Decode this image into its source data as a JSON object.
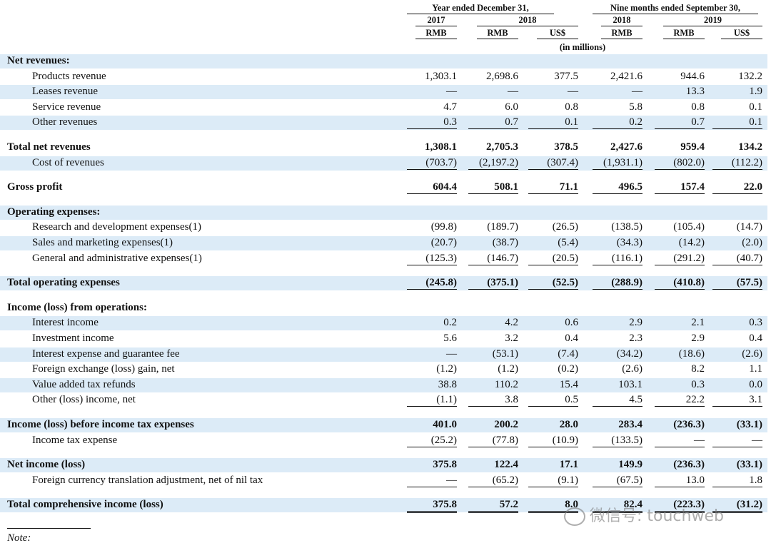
{
  "header": {
    "group1": "Year ended December 31,",
    "group2": "Nine months ended September 30,",
    "years": [
      "2017",
      "2018",
      "2018",
      "2019"
    ],
    "currencies": [
      "RMB",
      "RMB",
      "US$",
      "RMB",
      "RMB",
      "US$"
    ],
    "units": "(in millions)"
  },
  "table": {
    "rows": [
      {
        "label": "Net revenues:",
        "bold": true,
        "shaded": true,
        "cells": []
      },
      {
        "label": "Products revenue",
        "cells": [
          "1,303.1",
          "2,698.6",
          "377.5",
          "2,421.6",
          "944.6",
          "132.2"
        ]
      },
      {
        "label": "Leases revenue",
        "shaded": true,
        "cells": [
          "—",
          "—",
          "—",
          "—",
          "13.3",
          "1.9"
        ]
      },
      {
        "label": "Service revenue",
        "cells": [
          "4.7",
          "6.0",
          "0.8",
          "5.8",
          "0.8",
          "0.1"
        ]
      },
      {
        "label": "Other revenues",
        "shaded": true,
        "underline": "single",
        "cells": [
          "0.3",
          "0.7",
          "0.1",
          "0.2",
          "0.7",
          "0.1"
        ]
      },
      {
        "label": "Total net revenues",
        "bold": true,
        "gap": true,
        "cells": [
          "1,308.1",
          "2,705.3",
          "378.5",
          "2,427.6",
          "959.4",
          "134.2"
        ]
      },
      {
        "label": "Cost of revenues",
        "shaded": true,
        "underline": "single",
        "cells": [
          "(703.7)",
          "(2,197.2)",
          "(307.4)",
          "(1,931.1)",
          "(802.0)",
          "(112.2)"
        ]
      },
      {
        "label": "Gross profit",
        "bold": true,
        "gap": true,
        "underline": "single",
        "cells": [
          "604.4",
          "508.1",
          "71.1",
          "496.5",
          "157.4",
          "22.0"
        ]
      },
      {
        "label": "Operating expenses:",
        "bold": true,
        "shaded": true,
        "gap": true,
        "cells": []
      },
      {
        "label": "Research and development expenses(1)",
        "cells": [
          "(99.8)",
          "(189.7)",
          "(26.5)",
          "(138.5)",
          "(105.4)",
          "(14.7)"
        ]
      },
      {
        "label": "Sales and marketing expenses(1)",
        "shaded": true,
        "cells": [
          "(20.7)",
          "(38.7)",
          "(5.4)",
          "(34.3)",
          "(14.2)",
          "(2.0)"
        ]
      },
      {
        "label": "General and administrative expenses(1)",
        "underline": "single",
        "cells": [
          "(125.3)",
          "(146.7)",
          "(20.5)",
          "(116.1)",
          "(291.2)",
          "(40.7)"
        ]
      },
      {
        "label": "Total operating expenses",
        "bold": true,
        "shaded": true,
        "gap": true,
        "underline": "single",
        "cells": [
          "(245.8)",
          "(375.1)",
          "(52.5)",
          "(288.9)",
          "(410.8)",
          "(57.5)"
        ]
      },
      {
        "label": "Income (loss) from operations:",
        "bold": true,
        "gap": true,
        "cells": []
      },
      {
        "label": "Interest income",
        "shaded": true,
        "cells": [
          "0.2",
          "4.2",
          "0.6",
          "2.9",
          "2.1",
          "0.3"
        ]
      },
      {
        "label": "Investment income",
        "cells": [
          "5.6",
          "3.2",
          "0.4",
          "2.3",
          "2.9",
          "0.4"
        ]
      },
      {
        "label": "Interest expense and guarantee fee",
        "shaded": true,
        "cells": [
          "—",
          "(53.1)",
          "(7.4)",
          "(34.2)",
          "(18.6)",
          "(2.6)"
        ]
      },
      {
        "label": "Foreign exchange (loss) gain, net",
        "cells": [
          "(1.2)",
          "(1.2)",
          "(0.2)",
          "(2.6)",
          "8.2",
          "1.1"
        ]
      },
      {
        "label": "Value added tax refunds",
        "shaded": true,
        "cells": [
          "38.8",
          "110.2",
          "15.4",
          "103.1",
          "0.3",
          "0.0"
        ]
      },
      {
        "label": "Other (loss) income, net",
        "underline": "single",
        "cells": [
          "(1.1)",
          "3.8",
          "0.5",
          "4.5",
          "22.2",
          "3.1"
        ]
      },
      {
        "label": "Income (loss) before income tax expenses",
        "bold": true,
        "shaded": true,
        "gap": true,
        "cells": [
          "401.0",
          "200.2",
          "28.0",
          "283.4",
          "(236.3)",
          "(33.1)"
        ]
      },
      {
        "label": "Income tax expense",
        "underline": "single",
        "cells": [
          "(25.2)",
          "(77.8)",
          "(10.9)",
          "(133.5)",
          "—",
          "—"
        ]
      },
      {
        "label": "Net income (loss)",
        "bold": true,
        "shaded": true,
        "gap": true,
        "cells": [
          "375.8",
          "122.4",
          "17.1",
          "149.9",
          "(236.3)",
          "(33.1)"
        ]
      },
      {
        "label": "Foreign currency translation adjustment, net of nil tax",
        "underline": "single",
        "cells": [
          "—",
          "(65.2)",
          "(9.1)",
          "(67.5)",
          "13.0",
          "1.8"
        ]
      },
      {
        "label": "Total comprehensive income (loss)",
        "bold": true,
        "shaded": true,
        "gap": true,
        "underline": "double",
        "cells": [
          "375.8",
          "57.2",
          "8.0",
          "82.4",
          "(223.3)",
          "(31.2)"
        ]
      }
    ]
  },
  "note": "Note:",
  "watermark": "微信号: touchweb"
}
